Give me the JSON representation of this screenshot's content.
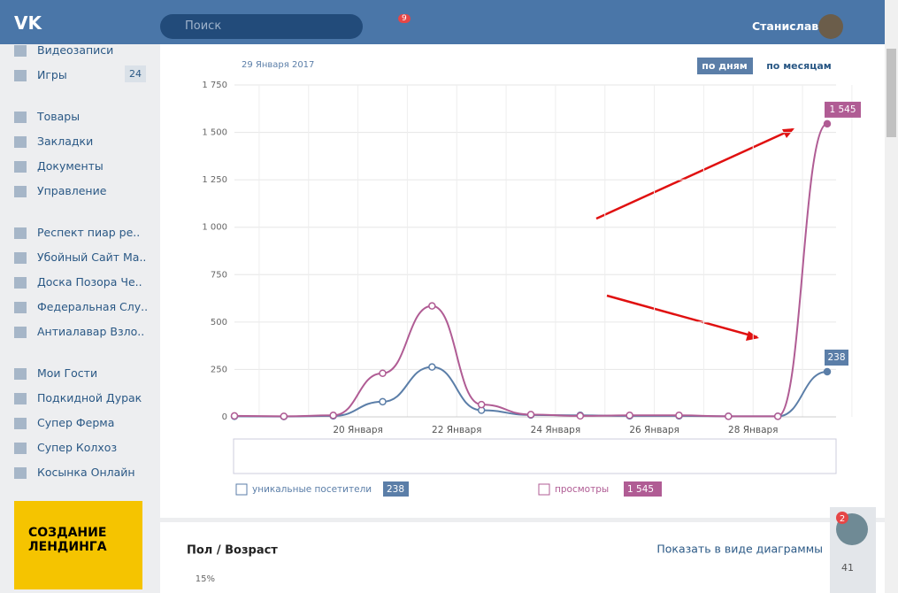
{
  "header": {
    "search": "Поиск",
    "notifications": "9",
    "user": "Станислав"
  },
  "sidebar": {
    "items": [
      {
        "label": "Видеозаписи"
      },
      {
        "label": "Игры",
        "badge": "24"
      },
      {
        "label": "Товары"
      },
      {
        "label": "Закладки"
      },
      {
        "label": "Документы"
      },
      {
        "label": "Управление"
      },
      {
        "label": "Респект пиар ре.."
      },
      {
        "label": "Убойный Сайт Ма.."
      },
      {
        "label": "Доска Позора Че.."
      },
      {
        "label": "Федеральная Слу.."
      },
      {
        "label": "Антиалавар Взло.."
      },
      {
        "label": "Мои Гости"
      },
      {
        "label": "Подкидной Дурак"
      },
      {
        "label": "Супер Ферма"
      },
      {
        "label": "Супер Колхоз"
      },
      {
        "label": "Косынка Онлайн"
      }
    ],
    "banner": "СОЗДАНИЕ ЛЕНДИНГА"
  },
  "chart_data": {
    "type": "line",
    "subtitle": "29 Января 2017",
    "period_buttons": [
      "по дням",
      "по месяцам"
    ],
    "categories": [
      null,
      null,
      null,
      "20 Января",
      null,
      "22 Января",
      null,
      "24 Января",
      null,
      "26 Января",
      null,
      "28 Января",
      null
    ],
    "ylim": [
      0,
      1750
    ],
    "yticks": [
      0,
      250,
      500,
      750,
      {
        "value": 1000,
        "label": "1 000"
      },
      {
        "value": 1250,
        "label": "1 250"
      },
      {
        "value": 1500,
        "label": "1 500"
      },
      {
        "value": 1750,
        "label": "1 750"
      }
    ],
    "grid": true,
    "series": [
      {
        "name": "уникальные посетители",
        "color": "#5b7ea8",
        "values": [
          3,
          2,
          5,
          80,
          263,
          35,
          10,
          8,
          5,
          5,
          3,
          3,
          238
        ],
        "value_labels": [
          null,
          null,
          null,
          null,
          null,
          null,
          null,
          null,
          null,
          null,
          null,
          null,
          "238"
        ]
      },
      {
        "name": "просмотры",
        "color": "#b05c94",
        "values": [
          5,
          3,
          8,
          230,
          585,
          65,
          12,
          5,
          8,
          8,
          3,
          3,
          1545
        ],
        "value_labels": [
          null,
          null,
          null,
          null,
          null,
          null,
          null,
          null,
          null,
          null,
          null,
          null,
          "1 545"
        ]
      }
    ]
  },
  "section": {
    "title": "Пол / Возраст",
    "link": "Показать в виде диаграммы",
    "first_tick": "15%"
  },
  "chat": {
    "badge": "2",
    "online": "41"
  }
}
